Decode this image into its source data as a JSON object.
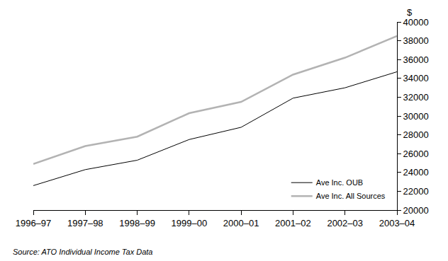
{
  "chart_data": {
    "type": "line",
    "categories": [
      "1996–97",
      "1997–98",
      "1998–99",
      "1999–00",
      "2000–01",
      "2001–02",
      "2002–03",
      "2003–04"
    ],
    "series": [
      {
        "name": "Ave Inc. OUB",
        "color": "#000000",
        "values": [
          22600,
          24300,
          25300,
          27500,
          28800,
          31900,
          33000,
          34700
        ]
      },
      {
        "name": "Ave Inc. All Sources",
        "color": "#b3b3b3",
        "values": [
          24900,
          26800,
          27800,
          30300,
          31500,
          34400,
          36200,
          38500
        ]
      }
    ],
    "y_label": "$",
    "ylim": [
      20000,
      40000
    ],
    "yticks": [
      20000,
      22000,
      24000,
      26000,
      28000,
      30000,
      32000,
      34000,
      36000,
      38000,
      40000
    ],
    "grid": false,
    "legend": "bottom right",
    "source": "Source: ATO Individual Income Tax Data"
  }
}
